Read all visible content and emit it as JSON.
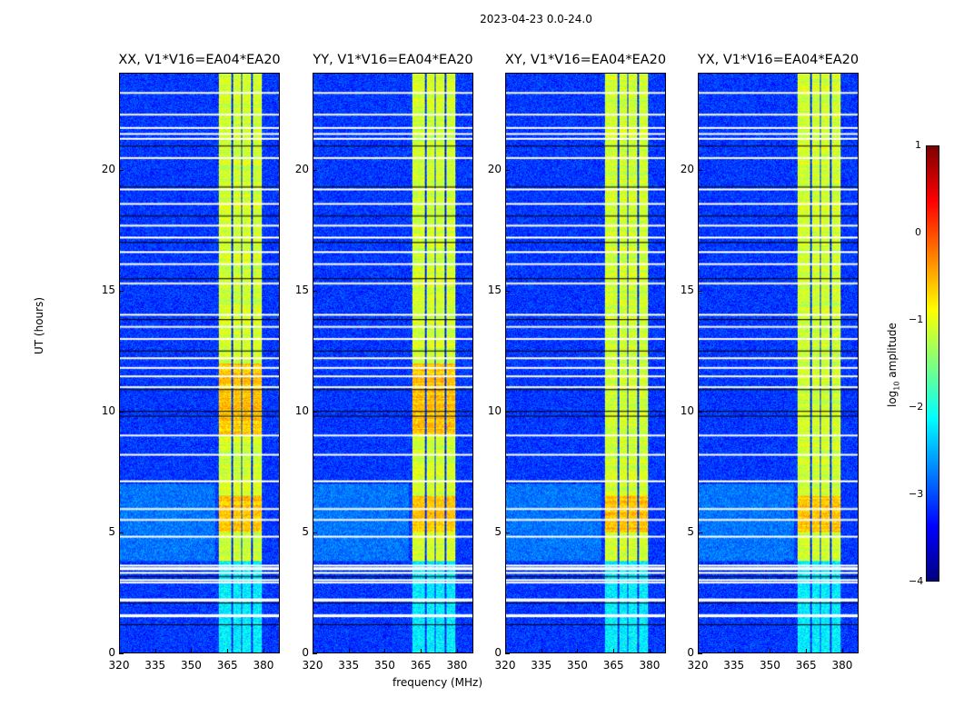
{
  "figure_title": "2023-04-23 0.0-24.0",
  "chart_data": {
    "type": "heatmap",
    "title": "2023-04-23 0.0-24.0",
    "xlabel": "frequency (MHz)",
    "ylabel": "UT (hours)",
    "xlim": [
      320,
      386.8
    ],
    "ylim": [
      0,
      24
    ],
    "xticks": [
      "320",
      "335",
      "350",
      "365",
      "380"
    ],
    "yticks": [
      "0",
      "5",
      "10",
      "15",
      "20"
    ],
    "panels": [
      {
        "title": "XX, V1*V16=EA04*EA20"
      },
      {
        "title": "YY, V1*V16=EA04*EA20"
      },
      {
        "title": "XY, V1*V16=EA04*EA20"
      },
      {
        "title": "YX, V1*V16=EA04*EA20"
      }
    ],
    "colorbar": {
      "label_prefix": "log",
      "label_sub": "10",
      "label_suffix": " amplitude",
      "range": [
        -4,
        1
      ],
      "ticks": [
        "1",
        "0",
        "−1",
        "−2",
        "−3",
        "−4"
      ],
      "colormap": "jet"
    },
    "background_level": -3.1,
    "signal_bands_mhz": [
      [
        361.5,
        366.5
      ],
      [
        367.3,
        370.8
      ],
      [
        371.3,
        374.8
      ],
      [
        375.6,
        379.3
      ]
    ],
    "band_level": -1.1,
    "signal_hours": [
      [
        3.8,
        24
      ]
    ],
    "flagged_hours_white": [
      1.5,
      1.55,
      2.15,
      2.2,
      2.9,
      3.0,
      3.3,
      3.45,
      3.5,
      3.6,
      4.8,
      5.5,
      5.95,
      7.1,
      8.2,
      9.0,
      11.0,
      11.45,
      11.8,
      12.2,
      13.0,
      13.5,
      14.0,
      15.3,
      16.1,
      16.6,
      17.2,
      17.7,
      18.6,
      19.2,
      20.5,
      21.3,
      21.5,
      21.75,
      22.3,
      23.2
    ],
    "flagged_hours_black": [
      1.15,
      2.05,
      3.15,
      9.8,
      10.0,
      10.9,
      12.5,
      13.8,
      15.5,
      17.0,
      18.1,
      19.3,
      21.0
    ]
  }
}
